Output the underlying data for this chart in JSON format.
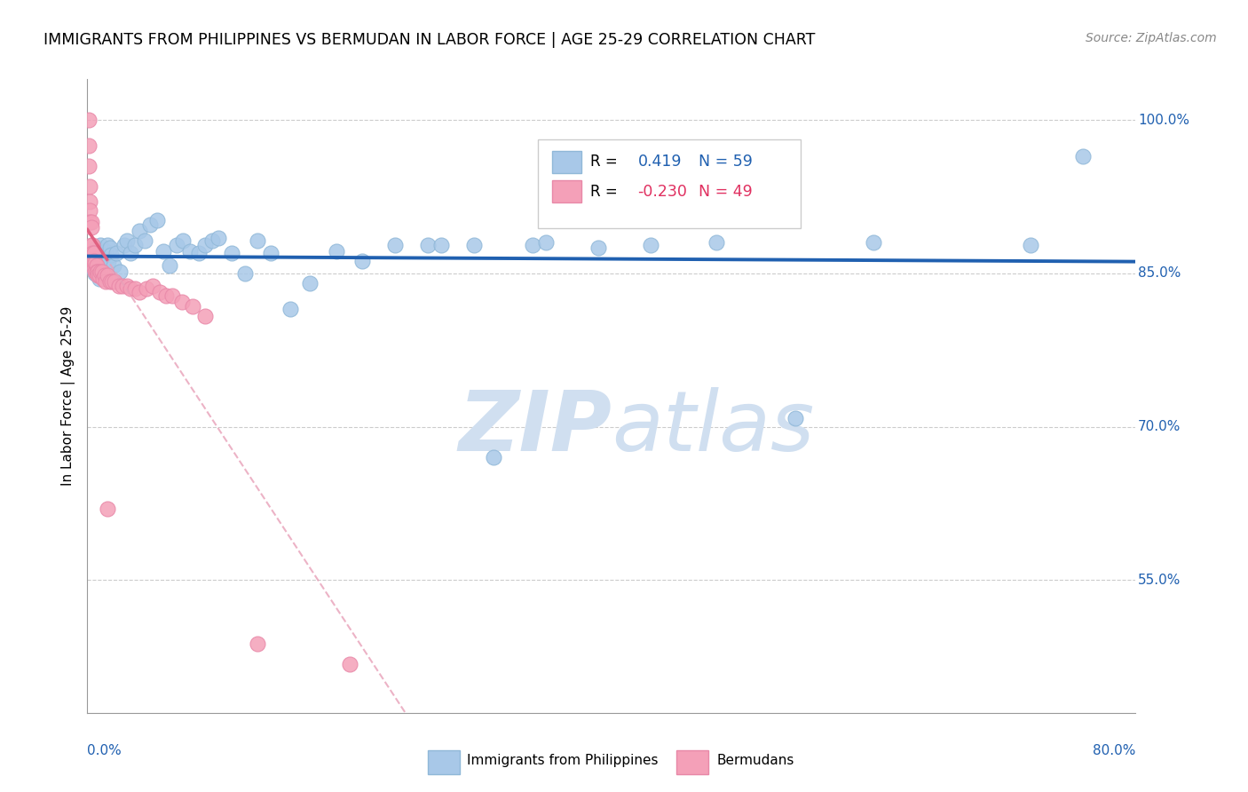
{
  "title": "IMMIGRANTS FROM PHILIPPINES VS BERMUDAN IN LABOR FORCE | AGE 25-29 CORRELATION CHART",
  "source": "Source: ZipAtlas.com",
  "ylabel": "In Labor Force | Age 25-29",
  "xmin": 0.0,
  "xmax": 0.8,
  "ymin": 0.42,
  "ymax": 1.04,
  "r_blue": 0.419,
  "n_blue": 59,
  "r_pink": -0.23,
  "n_pink": 49,
  "legend_label_blue": "Immigrants from Philippines",
  "legend_label_pink": "Bermudans",
  "blue_color": "#a8c8e8",
  "blue_edge_color": "#90b8d8",
  "blue_line_color": "#2060b0",
  "pink_color": "#f4a0b8",
  "pink_edge_color": "#e888a8",
  "pink_line_color": "#e06080",
  "pink_dash_color": "#e8a0b8",
  "watermark_zip": "ZIP",
  "watermark_atlas": "atlas",
  "watermark_color": "#d0dff0",
  "blue_x": [
    0.002,
    0.003,
    0.004,
    0.005,
    0.006,
    0.007,
    0.008,
    0.009,
    0.01,
    0.011,
    0.012,
    0.013,
    0.014,
    0.015,
    0.016,
    0.017,
    0.018,
    0.02,
    0.022,
    0.025,
    0.028,
    0.03,
    0.033,
    0.036,
    0.04,
    0.044,
    0.048,
    0.053,
    0.058,
    0.063,
    0.068,
    0.073,
    0.078,
    0.085,
    0.09,
    0.095,
    0.1,
    0.11,
    0.12,
    0.13,
    0.14,
    0.155,
    0.17,
    0.19,
    0.21,
    0.235,
    0.26,
    0.295,
    0.34,
    0.39,
    0.43,
    0.48,
    0.54,
    0.6,
    0.27,
    0.31,
    0.35,
    0.72,
    0.76
  ],
  "blue_y": [
    0.858,
    0.862,
    0.855,
    0.87,
    0.85,
    0.875,
    0.86,
    0.845,
    0.878,
    0.855,
    0.868,
    0.85,
    0.872,
    0.878,
    0.862,
    0.875,
    0.868,
    0.858,
    0.87,
    0.852,
    0.878,
    0.882,
    0.87,
    0.878,
    0.892,
    0.882,
    0.898,
    0.902,
    0.872,
    0.858,
    0.878,
    0.882,
    0.872,
    0.87,
    0.878,
    0.882,
    0.885,
    0.87,
    0.85,
    0.882,
    0.87,
    0.815,
    0.84,
    0.872,
    0.862,
    0.878,
    0.878,
    0.878,
    0.878,
    0.875,
    0.878,
    0.88,
    0.708,
    0.88,
    0.878,
    0.67,
    0.88,
    0.878,
    0.965
  ],
  "pink_x": [
    0.001,
    0.001,
    0.001,
    0.002,
    0.002,
    0.002,
    0.002,
    0.003,
    0.003,
    0.003,
    0.004,
    0.004,
    0.004,
    0.005,
    0.005,
    0.005,
    0.006,
    0.006,
    0.007,
    0.007,
    0.008,
    0.008,
    0.009,
    0.01,
    0.011,
    0.012,
    0.013,
    0.014,
    0.015,
    0.017,
    0.019,
    0.021,
    0.024,
    0.027,
    0.03,
    0.033,
    0.036,
    0.04,
    0.045,
    0.05,
    0.055,
    0.06,
    0.065,
    0.072,
    0.08,
    0.09,
    0.015,
    0.13,
    0.2
  ],
  "pink_y": [
    1.0,
    0.975,
    0.955,
    0.935,
    0.92,
    0.912,
    0.9,
    0.9,
    0.895,
    0.878,
    0.878,
    0.87,
    0.862,
    0.87,
    0.862,
    0.855,
    0.86,
    0.852,
    0.858,
    0.852,
    0.852,
    0.848,
    0.848,
    0.852,
    0.852,
    0.845,
    0.848,
    0.842,
    0.848,
    0.842,
    0.842,
    0.842,
    0.838,
    0.838,
    0.838,
    0.835,
    0.835,
    0.832,
    0.835,
    0.838,
    0.832,
    0.828,
    0.828,
    0.822,
    0.818,
    0.808,
    0.62,
    0.488,
    0.468
  ]
}
